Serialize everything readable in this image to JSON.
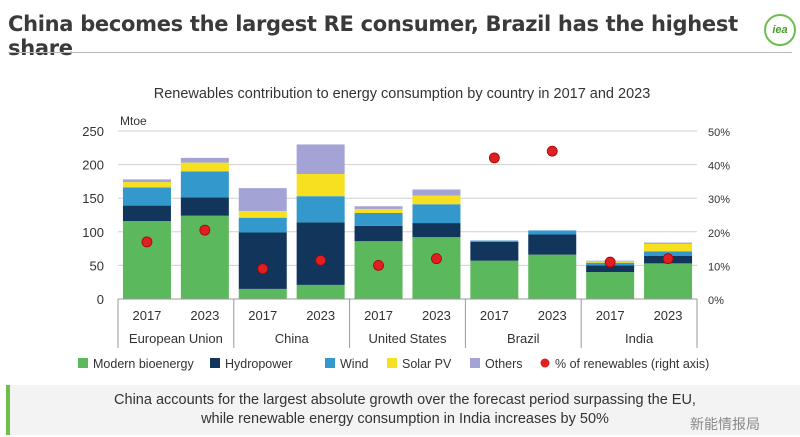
{
  "slide": {
    "title": "China becomes the largest RE consumer, Brazil has the highest share",
    "logo": "iea",
    "footer": [
      "China accounts for the largest absolute growth over the forecast period surpassing the EU,",
      "while renewable energy consumption in India increases by 50%"
    ],
    "watermark": "新能情报局"
  },
  "chart_data": {
    "type": "bar",
    "stacked": true,
    "title": "Renewables contribution to energy consumption by country in 2017 and 2023",
    "ylabel": "Mtoe",
    "ylim": [
      0,
      250
    ],
    "yticks": [
      0,
      50,
      100,
      150,
      200,
      250
    ],
    "y2lim": [
      0,
      50
    ],
    "y2ticks": [
      "0%",
      "10%",
      "20%",
      "30%",
      "40%",
      "50%"
    ],
    "grid": true,
    "legend": "bottom",
    "groups": [
      "European Union",
      "China",
      "United States",
      "Brazil",
      "India"
    ],
    "categories": [
      "2017",
      "2023",
      "2017",
      "2023",
      "2017",
      "2023",
      "2017",
      "2023",
      "2017",
      "2023"
    ],
    "series": [
      {
        "name": "Modern bioenergy",
        "color": "#5cb85c",
        "values": [
          116,
          124,
          15,
          21,
          86,
          92,
          57,
          66,
          40,
          53
        ]
      },
      {
        "name": "Hydropower",
        "color": "#12355b",
        "values": [
          23,
          27,
          84,
          93,
          23,
          21,
          28,
          30,
          10,
          11
        ]
      },
      {
        "name": "Wind",
        "color": "#3399cc",
        "values": [
          27,
          39,
          22,
          39,
          19,
          28,
          2,
          6,
          4,
          7
        ]
      },
      {
        "name": "Solar PV",
        "color": "#f6e01f",
        "values": [
          8,
          13,
          10,
          33,
          6,
          13,
          0,
          0,
          2,
          11
        ]
      },
      {
        "name": "Others",
        "color": "#a3a3d6",
        "values": [
          4,
          7,
          34,
          44,
          4,
          9,
          0,
          0,
          1,
          2
        ]
      }
    ],
    "line_series": {
      "name": "% of renewables (right axis)",
      "color": "#e02020",
      "values": [
        17,
        20.5,
        9,
        11.5,
        10,
        12,
        42,
        44,
        11,
        12
      ]
    }
  }
}
